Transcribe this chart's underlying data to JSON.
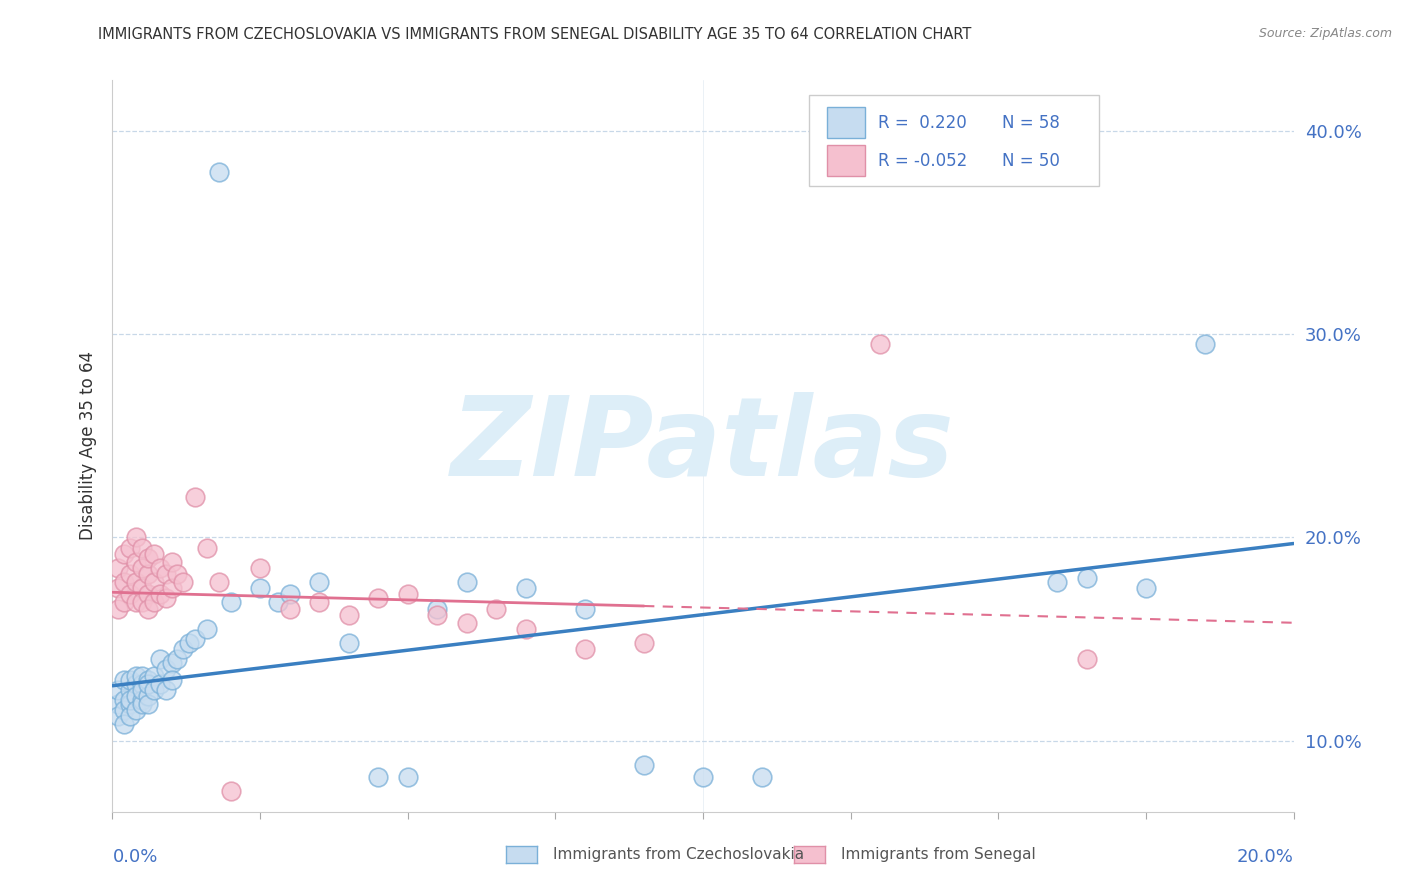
{
  "title": "IMMIGRANTS FROM CZECHOSLOVAKIA VS IMMIGRANTS FROM SENEGAL DISABILITY AGE 35 TO 64 CORRELATION CHART",
  "source": "Source: ZipAtlas.com",
  "ylabel": "Disability Age 35 to 64",
  "ytick_vals": [
    0.1,
    0.2,
    0.3,
    0.4
  ],
  "xlim": [
    0.0,
    0.2
  ],
  "ylim": [
    0.065,
    0.425
  ],
  "color_blue_fill": "#c6dcf0",
  "color_blue_edge": "#7ab0d8",
  "color_pink_fill": "#f5c0cf",
  "color_pink_edge": "#e090a8",
  "color_blue_line": "#3a7fc1",
  "color_pink_line": "#e07090",
  "color_grid": "#c8d8e8",
  "watermark": "ZIPatlas",
  "watermark_color": "#ddeef8",
  "blue_trend_x": [
    0.0,
    0.2
  ],
  "blue_trend_y": [
    0.127,
    0.197
  ],
  "pink_trend_x": [
    0.0,
    0.2
  ],
  "pink_trend_y": [
    0.173,
    0.158
  ],
  "blue_x": [
    0.001,
    0.001,
    0.001,
    0.002,
    0.002,
    0.002,
    0.002,
    0.003,
    0.003,
    0.003,
    0.003,
    0.003,
    0.004,
    0.004,
    0.004,
    0.004,
    0.005,
    0.005,
    0.005,
    0.005,
    0.005,
    0.006,
    0.006,
    0.006,
    0.006,
    0.007,
    0.007,
    0.008,
    0.008,
    0.009,
    0.009,
    0.01,
    0.01,
    0.011,
    0.012,
    0.013,
    0.014,
    0.016,
    0.018,
    0.02,
    0.025,
    0.028,
    0.03,
    0.035,
    0.04,
    0.045,
    0.05,
    0.055,
    0.06,
    0.07,
    0.08,
    0.09,
    0.1,
    0.11,
    0.16,
    0.165,
    0.175,
    0.185
  ],
  "blue_y": [
    0.118,
    0.125,
    0.112,
    0.13,
    0.12,
    0.115,
    0.108,
    0.125,
    0.118,
    0.13,
    0.112,
    0.12,
    0.128,
    0.122,
    0.115,
    0.132,
    0.128,
    0.12,
    0.118,
    0.132,
    0.125,
    0.13,
    0.122,
    0.128,
    0.118,
    0.132,
    0.125,
    0.14,
    0.128,
    0.135,
    0.125,
    0.138,
    0.13,
    0.14,
    0.145,
    0.148,
    0.15,
    0.155,
    0.38,
    0.168,
    0.175,
    0.168,
    0.172,
    0.178,
    0.148,
    0.082,
    0.082,
    0.165,
    0.178,
    0.175,
    0.165,
    0.088,
    0.082,
    0.082,
    0.178,
    0.18,
    0.175,
    0.295
  ],
  "pink_x": [
    0.001,
    0.001,
    0.001,
    0.002,
    0.002,
    0.002,
    0.003,
    0.003,
    0.003,
    0.004,
    0.004,
    0.004,
    0.004,
    0.005,
    0.005,
    0.005,
    0.005,
    0.006,
    0.006,
    0.006,
    0.006,
    0.007,
    0.007,
    0.007,
    0.008,
    0.008,
    0.009,
    0.009,
    0.01,
    0.01,
    0.011,
    0.012,
    0.014,
    0.016,
    0.018,
    0.02,
    0.025,
    0.03,
    0.035,
    0.04,
    0.045,
    0.05,
    0.055,
    0.06,
    0.065,
    0.07,
    0.08,
    0.09,
    0.13,
    0.165
  ],
  "pink_y": [
    0.165,
    0.175,
    0.185,
    0.168,
    0.178,
    0.192,
    0.172,
    0.182,
    0.195,
    0.178,
    0.188,
    0.168,
    0.2,
    0.175,
    0.185,
    0.168,
    0.195,
    0.172,
    0.182,
    0.165,
    0.19,
    0.168,
    0.178,
    0.192,
    0.172,
    0.185,
    0.17,
    0.182,
    0.175,
    0.188,
    0.182,
    0.178,
    0.22,
    0.195,
    0.178,
    0.075,
    0.185,
    0.165,
    0.168,
    0.162,
    0.17,
    0.172,
    0.162,
    0.158,
    0.165,
    0.155,
    0.145,
    0.148,
    0.295,
    0.14
  ]
}
